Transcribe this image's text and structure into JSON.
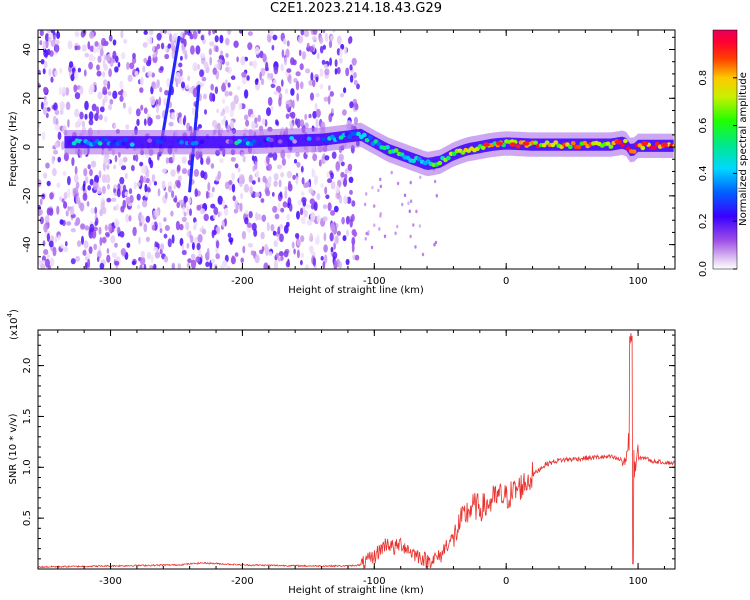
{
  "figure": {
    "title": "C2E1.2023.214.18.43.G29"
  },
  "chart_data": [
    {
      "type": "heatmap",
      "xlabel": "Height of straight line (km)",
      "ylabel": "Frequency (Hz)",
      "xlim": [
        -355,
        128
      ],
      "ylim": [
        -50,
        48
      ],
      "xticks": [
        -300,
        -200,
        -100,
        0,
        100
      ],
      "yticks": [
        -40,
        -20,
        0,
        20,
        40
      ],
      "colorbar": {
        "label": "Normalized spectral amplitude",
        "range": [
          0,
          1
        ],
        "ticks": [
          "0.0",
          "0.2",
          "0.4",
          "0.6",
          "0.8"
        ],
        "colormap": "rainbow (white-violet-blue-cyan-green-yellow-red-magenta)"
      },
      "features": {
        "noise_region_x": [
          -355,
          -112
        ],
        "carrier_track": [
          [
            -330,
            2
          ],
          [
            -280,
            2
          ],
          [
            -200,
            2
          ],
          [
            -140,
            3
          ],
          [
            -110,
            5
          ],
          [
            -100,
            2
          ],
          [
            -90,
            -1
          ],
          [
            -80,
            -3
          ],
          [
            -70,
            -5
          ],
          [
            -60,
            -7
          ],
          [
            -50,
            -6
          ],
          [
            -40,
            -3
          ],
          [
            -30,
            -1
          ],
          [
            -20,
            0
          ],
          [
            -10,
            1
          ],
          [
            0,
            1.5
          ],
          [
            20,
            1
          ],
          [
            40,
            1
          ],
          [
            60,
            1
          ],
          [
            80,
            1
          ],
          [
            90,
            2
          ],
          [
            95,
            -2
          ],
          [
            100,
            0.5
          ],
          [
            128,
            0.5
          ]
        ],
        "diagonal_streaks": [
          {
            "x": [
              -262,
              -248
            ],
            "y": [
              0,
              45
            ]
          },
          {
            "x": [
              -240,
              -233
            ],
            "y": [
              -18,
              25
            ]
          }
        ]
      }
    },
    {
      "type": "line",
      "xlabel": "Height of straight line (km)",
      "ylabel": "SNR (10 * v/v)",
      "scale_label": "(x10",
      "scale_exponent": "4",
      "scale_suffix": ")",
      "xlim": [
        -355,
        128
      ],
      "ylim": [
        0,
        2.35
      ],
      "xticks": [
        -300,
        -200,
        -100,
        0,
        100
      ],
      "yticks": [
        "0.5",
        "1.0",
        "1.5",
        "2.0"
      ],
      "color": "#e8312d",
      "series": [
        {
          "x": [
            -355,
            -300,
            -250,
            -230,
            -200,
            -150,
            -120,
            -110,
            -100,
            -95,
            -90,
            -85,
            -80,
            -75,
            -70,
            -65,
            -60,
            -55,
            -50,
            -45,
            -40,
            -35,
            -30,
            -25,
            -20,
            -15,
            -10,
            -5,
            0,
            5,
            10,
            15,
            20,
            25,
            30,
            40,
            50,
            60,
            70,
            80,
            85,
            90,
            93,
            95,
            97,
            100,
            105,
            110,
            120,
            128
          ],
          "values": [
            0.02,
            0.03,
            0.04,
            0.06,
            0.04,
            0.03,
            0.03,
            0.04,
            0.12,
            0.2,
            0.26,
            0.2,
            0.25,
            0.2,
            0.15,
            0.12,
            0.08,
            0.1,
            0.12,
            0.25,
            0.3,
            0.45,
            0.55,
            0.62,
            0.6,
            0.62,
            0.68,
            0.72,
            0.7,
            0.75,
            0.8,
            0.85,
            0.92,
            0.98,
            1.03,
            1.07,
            1.08,
            1.09,
            1.1,
            1.1,
            1.08,
            1.06,
            1.2,
            2.3,
            1.0,
            1.08,
            1.1,
            1.06,
            1.05,
            1.04
          ]
        }
      ]
    }
  ]
}
